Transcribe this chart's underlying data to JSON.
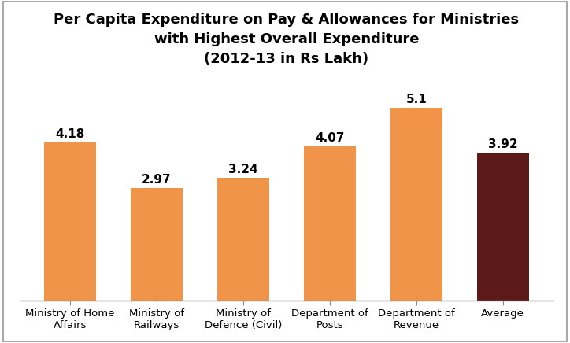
{
  "categories": [
    "Ministry of Home\nAffairs",
    "Ministry of\nRailways",
    "Ministry of\nDefence (Civil)",
    "Department of\nPosts",
    "Department of\nRevenue",
    "Average"
  ],
  "values": [
    4.18,
    2.97,
    3.24,
    4.07,
    5.1,
    3.92
  ],
  "bar_colors": [
    "#F0944A",
    "#F0944A",
    "#F0944A",
    "#F0944A",
    "#F0944A",
    "#5C1A1A"
  ],
  "title_line1": "Per Capita Expenditure on Pay & Allowances for Ministries",
  "title_line2": "with Highest Overall Expenditure",
  "title_line3": "(2012-13 in Rs Lakh)",
  "ylim": [
    0,
    6.0
  ],
  "bar_width": 0.6,
  "title_fontsize": 13,
  "tick_fontsize": 9.5,
  "value_fontsize": 11,
  "background_color": "#FFFFFF"
}
